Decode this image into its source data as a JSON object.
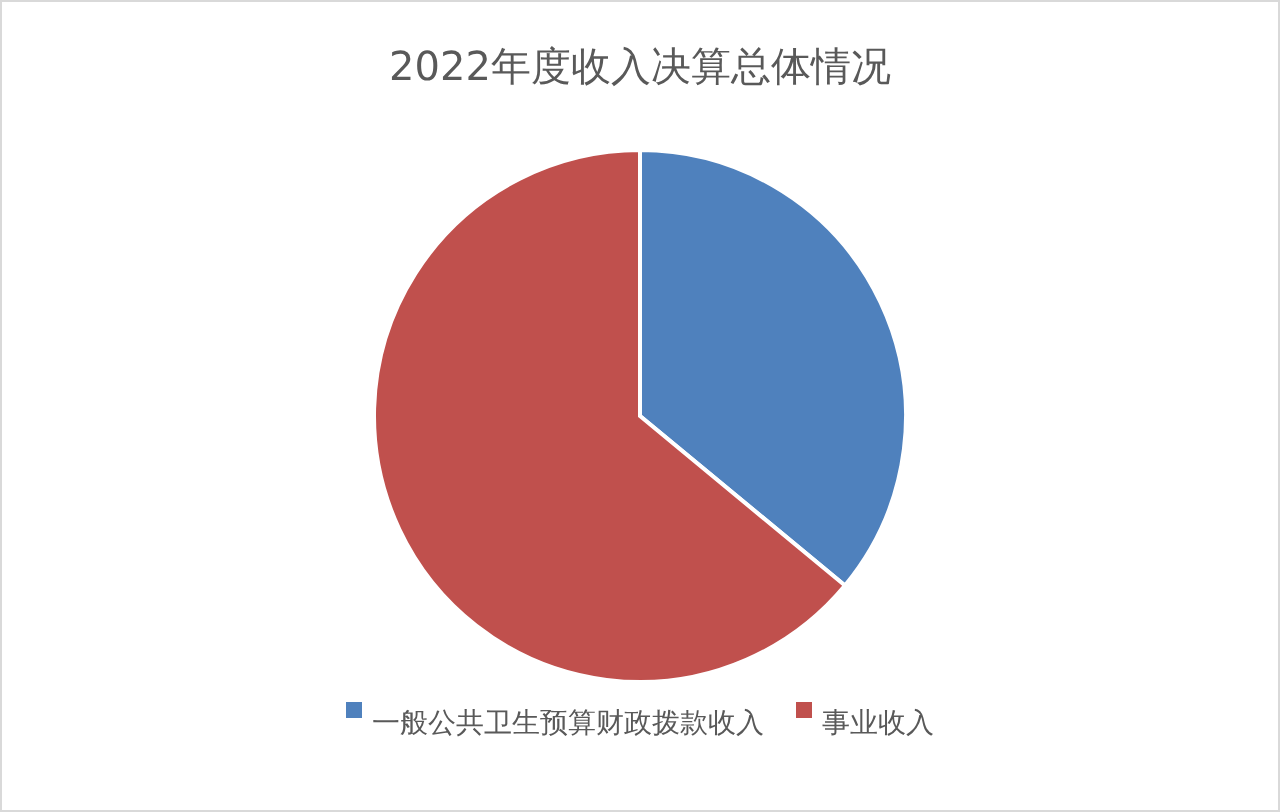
{
  "chart_data": {
    "type": "pie",
    "title": "2022年度收入决算总体情况",
    "categories": [
      "一般公共卫生预算财政拨款收入",
      "事业收入"
    ],
    "values": [
      36,
      64
    ],
    "colors": [
      "#4f81bd",
      "#c0504d"
    ],
    "legend": "bottom"
  }
}
